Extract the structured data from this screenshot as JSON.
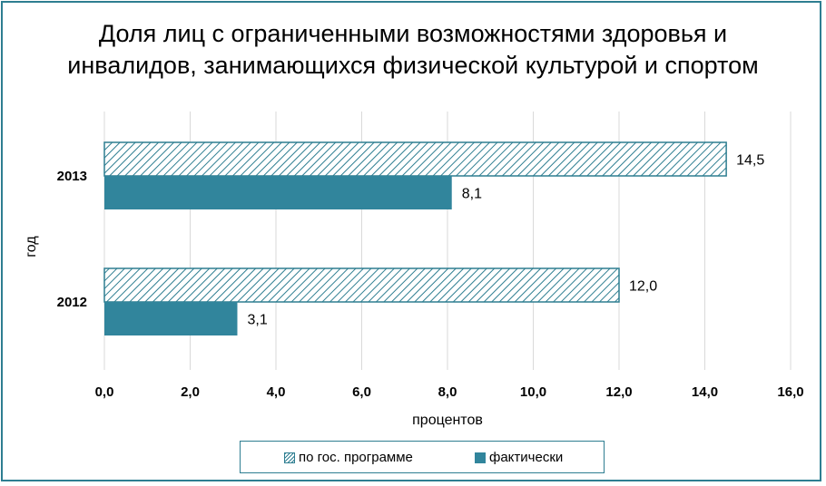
{
  "chart_data": {
    "type": "bar",
    "orientation": "horizontal",
    "title": "Доля лиц с ограниченными возможностями здоровья и инвалидов, занимающихся физической культурой и спортом",
    "xlabel": "процентов",
    "ylabel": "год",
    "categories": [
      "2013",
      "2012"
    ],
    "xlim": [
      0,
      16
    ],
    "xticks": [
      "0,0",
      "2,0",
      "4,0",
      "6,0",
      "8,0",
      "10,0",
      "12,0",
      "14,0",
      "16,0"
    ],
    "grid": true,
    "legend_position": "bottom",
    "series": [
      {
        "name": "по гос. программе",
        "values": [
          14.5,
          12.0
        ],
        "labels": [
          "14,5",
          "12,0"
        ],
        "color": "#2e7e91",
        "pattern": "diagonal-hatch"
      },
      {
        "name": "фактически",
        "values": [
          8.1,
          3.1
        ],
        "labels": [
          "8,1",
          "3,1"
        ],
        "color": "#31859c",
        "pattern": "solid"
      }
    ]
  }
}
